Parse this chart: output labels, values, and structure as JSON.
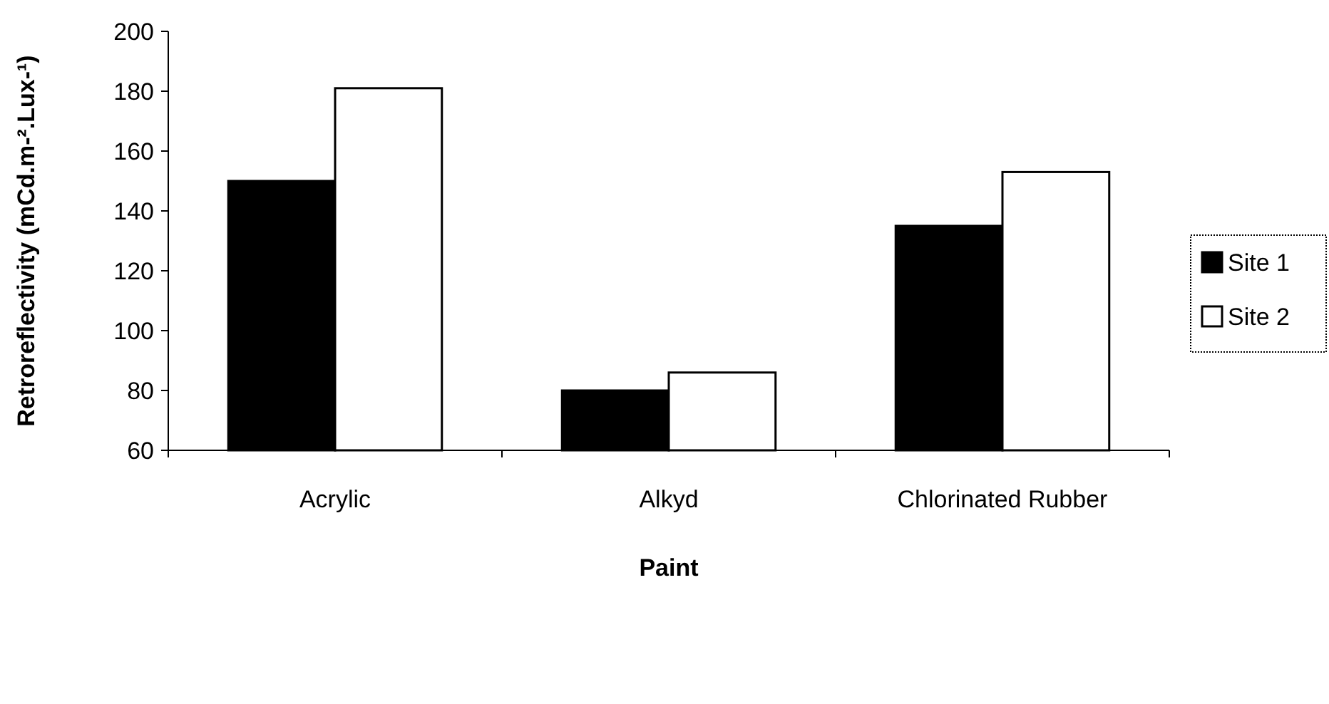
{
  "chart_data": {
    "type": "bar",
    "xlabel": "Paint",
    "ylabel": "Retroreflectivity (mCd.m-².Lux-¹)",
    "categories": [
      "Acrylic",
      "Alkyd",
      "Chlorinated Rubber"
    ],
    "series": [
      {
        "name": "Site 1",
        "color": "#000000",
        "values": [
          150,
          80,
          135
        ]
      },
      {
        "name": "Site 2",
        "color": "#ffffff",
        "values": [
          181,
          86,
          153
        ]
      }
    ],
    "ylim": [
      60,
      200
    ],
    "yticks": [
      60,
      80,
      100,
      120,
      140,
      160,
      180,
      200
    ],
    "legend": "right"
  }
}
